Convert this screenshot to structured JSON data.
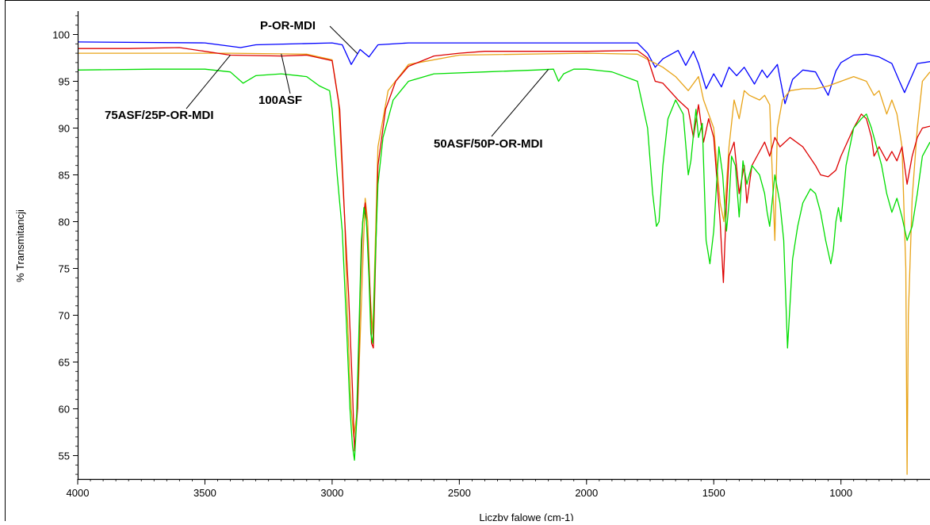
{
  "chart_data": {
    "type": "line",
    "title": "",
    "xlabel": "Liczby falowe (cm-1)",
    "ylabel": "% Transmitancji",
    "xlim": [
      4000,
      650
    ],
    "ylim": [
      52.5,
      102.5
    ],
    "x_reversed": true,
    "grid": false,
    "legend": "none",
    "x_ticks": [
      "4000",
      "3500",
      "3000",
      "2500",
      "2000",
      "1500",
      "1000"
    ],
    "y_ticks": [
      "100",
      "95",
      "90",
      "85",
      "80",
      "75",
      "70",
      "65",
      "60",
      "55"
    ],
    "annotations": [
      {
        "text": "P-OR-MDI",
        "series": "P-OR-MDI"
      },
      {
        "text": "100ASF",
        "series": "100ASF"
      },
      {
        "text": "75ASF/25P-OR-MDI",
        "series": "75ASF/25P-OR-MDI"
      },
      {
        "text": "50ASF/50P-OR-MDI",
        "series": "50ASF/50P-OR-MDI"
      }
    ],
    "series": [
      {
        "name": "P-OR-MDI",
        "color": "#0000ff",
        "x": [
          4000,
          3500,
          3360,
          3300,
          3000,
          2960,
          2925,
          2890,
          2855,
          2820,
          2700,
          2000,
          1800,
          1760,
          1730,
          1700,
          1640,
          1610,
          1580,
          1560,
          1530,
          1500,
          1470,
          1440,
          1410,
          1380,
          1340,
          1310,
          1290,
          1250,
          1220,
          1190,
          1150,
          1100,
          1050,
          1020,
          1000,
          950,
          900,
          850,
          800,
          770,
          750,
          700,
          650
        ],
        "y": [
          99.2,
          99.1,
          98.6,
          98.9,
          99.1,
          98.9,
          96.8,
          98.4,
          97.6,
          98.9,
          99.1,
          99.1,
          99.1,
          98.0,
          96.5,
          97.4,
          98.3,
          96.7,
          98.2,
          96.9,
          94.2,
          95.8,
          94.4,
          96.5,
          95.6,
          96.5,
          94.7,
          96.2,
          95.4,
          96.8,
          92.6,
          95.2,
          96.2,
          96.0,
          93.5,
          96.1,
          97.0,
          97.8,
          97.9,
          97.6,
          96.9,
          95.0,
          93.8,
          96.9,
          97.1
        ]
      },
      {
        "name": "100ASF",
        "color": "#e8a317",
        "x": [
          4000,
          3700,
          3400,
          3100,
          3000,
          2975,
          2950,
          2940,
          2925,
          2915,
          2900,
          2880,
          2870,
          2860,
          2850,
          2840,
          2820,
          2780,
          2700,
          2500,
          2000,
          1800,
          1700,
          1650,
          1600,
          1560,
          1540,
          1500,
          1475,
          1460,
          1440,
          1420,
          1400,
          1380,
          1360,
          1320,
          1300,
          1280,
          1260,
          1250,
          1230,
          1200,
          1150,
          1100,
          1050,
          1000,
          950,
          900,
          870,
          850,
          820,
          800,
          780,
          760,
          745,
          740,
          735,
          720,
          700,
          680,
          650
        ],
        "y": [
          98.0,
          98.0,
          98.0,
          97.9,
          97.3,
          93.0,
          80.0,
          70.0,
          60.0,
          57.0,
          60.0,
          75.0,
          82.5,
          80.0,
          72.0,
          68.0,
          88.0,
          94.0,
          96.8,
          97.8,
          98.0,
          97.9,
          96.5,
          95.5,
          94.0,
          95.5,
          93.0,
          90.0,
          82.0,
          80.0,
          88.0,
          93.0,
          91.0,
          94.0,
          93.5,
          93.0,
          93.5,
          92.5,
          78.0,
          90.0,
          93.0,
          94.0,
          94.2,
          94.2,
          94.5,
          95.0,
          95.5,
          95.0,
          93.5,
          94.0,
          91.5,
          93.0,
          91.5,
          88.0,
          75.0,
          53.0,
          70.0,
          82.5,
          90.0,
          95.0,
          96.0
        ]
      },
      {
        "name": "75ASF/25P-OR-MDI",
        "color": "#dd0000",
        "x": [
          4000,
          3800,
          3600,
          3400,
          3200,
          3100,
          3000,
          2970,
          2950,
          2935,
          2920,
          2912,
          2900,
          2890,
          2880,
          2870,
          2860,
          2850,
          2845,
          2838,
          2820,
          2790,
          2750,
          2700,
          2600,
          2500,
          2400,
          2000,
          1800,
          1760,
          1730,
          1700,
          1640,
          1600,
          1580,
          1560,
          1540,
          1520,
          1500,
          1475,
          1462,
          1450,
          1440,
          1420,
          1400,
          1380,
          1370,
          1350,
          1320,
          1300,
          1280,
          1260,
          1240,
          1200,
          1150,
          1100,
          1080,
          1050,
          1020,
          1000,
          950,
          920,
          900,
          880,
          870,
          850,
          820,
          800,
          780,
          760,
          740,
          720,
          700,
          680,
          650
        ],
        "y": [
          98.5,
          98.5,
          98.6,
          97.8,
          97.7,
          97.8,
          97.2,
          92.0,
          80.0,
          72.0,
          62.0,
          55.5,
          60.0,
          72.0,
          80.0,
          82.0,
          78.0,
          72.0,
          67.0,
          66.5,
          86.0,
          92.0,
          95.0,
          96.6,
          97.7,
          98.0,
          98.2,
          98.2,
          98.3,
          97.5,
          95.0,
          94.8,
          93.0,
          92.0,
          89.0,
          92.5,
          88.5,
          91.0,
          89.0,
          80.0,
          73.5,
          82.0,
          87.0,
          88.5,
          83.0,
          86.0,
          82.0,
          86.0,
          87.5,
          88.5,
          87.0,
          89.0,
          88.0,
          89.0,
          88.0,
          86.0,
          85.0,
          84.8,
          85.5,
          87.0,
          90.0,
          91.5,
          91.0,
          89.0,
          87.0,
          88.0,
          86.5,
          87.5,
          86.5,
          88.0,
          84.0,
          87.0,
          89.0,
          90.0,
          90.2
        ]
      },
      {
        "name": "50ASF/50P-OR-MDI",
        "color": "#00dd00",
        "x": [
          4000,
          3700,
          3500,
          3400,
          3350,
          3300,
          3200,
          3100,
          3050,
          3010,
          3000,
          2980,
          2960,
          2945,
          2930,
          2920,
          2912,
          2905,
          2895,
          2885,
          2875,
          2865,
          2855,
          2848,
          2840,
          2830,
          2820,
          2800,
          2760,
          2700,
          2600,
          2400,
          2200,
          2130,
          2110,
          2090,
          2050,
          2000,
          1900,
          1800,
          1760,
          1740,
          1725,
          1715,
          1700,
          1680,
          1650,
          1620,
          1600,
          1590,
          1570,
          1560,
          1545,
          1530,
          1515,
          1500,
          1480,
          1465,
          1450,
          1440,
          1430,
          1415,
          1400,
          1385,
          1370,
          1350,
          1320,
          1300,
          1290,
          1280,
          1260,
          1240,
          1225,
          1210,
          1190,
          1170,
          1150,
          1120,
          1100,
          1080,
          1060,
          1040,
          1030,
          1020,
          1010,
          1000,
          980,
          950,
          920,
          900,
          880,
          860,
          840,
          820,
          800,
          780,
          760,
          740,
          720,
          700,
          680,
          650
        ],
        "y": [
          96.2,
          96.3,
          96.3,
          96.0,
          94.8,
          95.6,
          95.8,
          95.5,
          94.5,
          94.0,
          92.0,
          85.0,
          79.0,
          70.0,
          60.0,
          56.0,
          54.5,
          58.0,
          68.0,
          78.0,
          81.5,
          80.0,
          74.0,
          68.0,
          67.0,
          76.0,
          84.0,
          89.0,
          93.0,
          95.0,
          95.8,
          96.0,
          96.2,
          96.3,
          95.0,
          95.8,
          96.3,
          96.3,
          96.0,
          95.0,
          90.0,
          83.0,
          79.5,
          80.0,
          86.0,
          91.0,
          93.0,
          91.5,
          85.0,
          86.5,
          92.0,
          89.0,
          90.5,
          78.0,
          75.5,
          79.0,
          88.0,
          85.0,
          79.0,
          82.0,
          87.0,
          86.0,
          80.5,
          86.5,
          84.0,
          86.0,
          85.0,
          83.0,
          81.0,
          79.5,
          85.0,
          82.0,
          78.0,
          66.5,
          76.0,
          79.5,
          82.0,
          83.5,
          83.0,
          81.0,
          78.0,
          75.5,
          77.0,
          80.0,
          81.5,
          80.0,
          86.0,
          90.0,
          91.0,
          91.5,
          90.0,
          88.0,
          86.0,
          83.0,
          81.0,
          82.5,
          80.5,
          78.0,
          79.5,
          83.0,
          87.0,
          88.5
        ]
      }
    ]
  }
}
